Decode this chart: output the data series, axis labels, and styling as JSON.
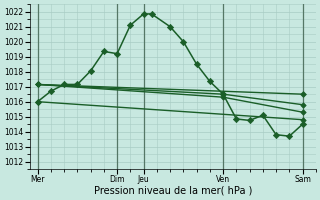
{
  "background_color": "#c8e8e0",
  "grid_color": "#a8ccc4",
  "line_color": "#1a5e28",
  "marker_color": "#1a5e28",
  "xlabel": "Pression niveau de la mer( hPa )",
  "ylim": [
    1011.5,
    1022.5
  ],
  "yticks": [
    1012,
    1013,
    1014,
    1015,
    1016,
    1017,
    1018,
    1019,
    1020,
    1021,
    1022
  ],
  "xlim": [
    -0.3,
    10.5
  ],
  "xtick_labels": [
    "Mer",
    "Dim",
    "Jeu",
    "Ven",
    "Sam"
  ],
  "xtick_positions": [
    0,
    3,
    4,
    7,
    10
  ],
  "vlines": [
    0,
    3,
    4,
    7,
    10
  ],
  "vline_color": "#557766",
  "vline_linewidth": 0.8,
  "series": [
    {
      "x": [
        0.0,
        0.5,
        1.0,
        1.5,
        2.0,
        2.5,
        3.0,
        3.5,
        4.0,
        4.3,
        5.0,
        5.5,
        6.0,
        6.5,
        7.0,
        7.5,
        8.0,
        8.5,
        9.0,
        9.5,
        10.0
      ],
      "y": [
        1016.0,
        1016.7,
        1017.15,
        1017.15,
        1018.05,
        1019.35,
        1019.2,
        1021.1,
        1021.85,
        1021.85,
        1021.0,
        1020.0,
        1018.5,
        1017.35,
        1016.5,
        1014.85,
        1014.75,
        1015.1,
        1013.8,
        1013.7,
        1014.5
      ],
      "marker": "D",
      "markersize": 3.2,
      "linewidth": 1.1
    },
    {
      "x": [
        0.0,
        10.0
      ],
      "y": [
        1017.15,
        1016.5
      ],
      "marker": "D",
      "markersize": 3.0,
      "linewidth": 1.0
    },
    {
      "x": [
        0.0,
        7.0,
        10.0
      ],
      "y": [
        1017.15,
        1016.5,
        1015.8
      ],
      "marker": "D",
      "markersize": 2.8,
      "linewidth": 1.0
    },
    {
      "x": [
        0.0,
        7.0,
        10.0
      ],
      "y": [
        1017.15,
        1016.3,
        1015.3
      ],
      "marker": "D",
      "markersize": 2.8,
      "linewidth": 1.0
    },
    {
      "x": [
        0.0,
        10.0
      ],
      "y": [
        1016.0,
        1014.8
      ],
      "marker": "D",
      "markersize": 2.8,
      "linewidth": 1.0
    }
  ]
}
